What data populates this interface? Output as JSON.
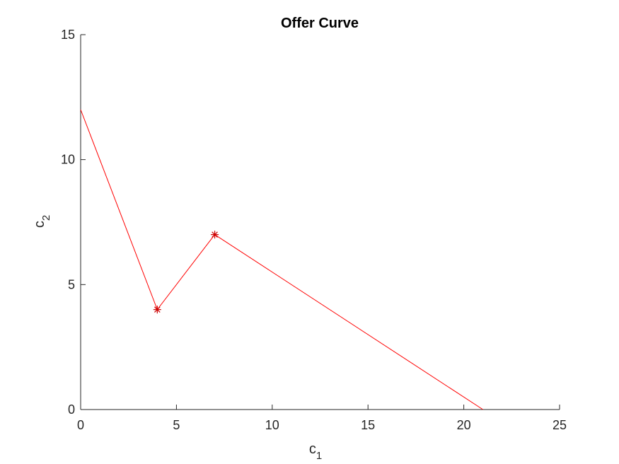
{
  "chart_data": {
    "type": "line",
    "title": "Offer Curve",
    "xlabel": {
      "base": "c",
      "subscript": "1"
    },
    "ylabel": {
      "base": "c",
      "subscript": "2"
    },
    "xlim": [
      0,
      25
    ],
    "ylim": [
      0,
      15
    ],
    "xticks": [
      0,
      5,
      10,
      15,
      20,
      25
    ],
    "yticks": [
      0,
      5,
      10,
      15
    ],
    "grid": false,
    "series": [
      {
        "color": "#ff0000",
        "points": [
          {
            "x": 0,
            "y": 12
          },
          {
            "x": 4,
            "y": 4
          },
          {
            "x": 7,
            "y": 7
          },
          {
            "x": 21,
            "y": 0
          }
        ]
      }
    ],
    "markers": [
      {
        "x": 4,
        "y": 4,
        "symbol": "asterisk",
        "color": "#cc0000"
      },
      {
        "x": 7,
        "y": 7,
        "symbol": "asterisk",
        "color": "#cc0000"
      }
    ]
  }
}
